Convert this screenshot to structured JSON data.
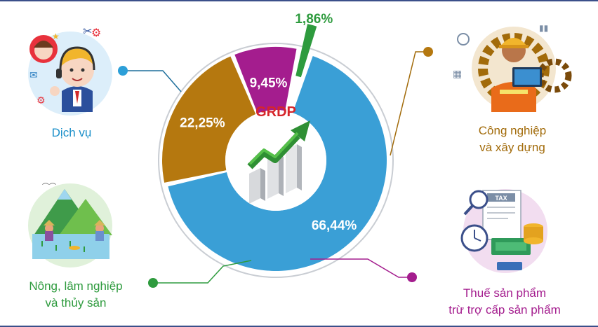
{
  "chart_data": {
    "type": "pie",
    "title": "GRDP",
    "slices": [
      {
        "label": "Dịch vụ",
        "value": 66.44,
        "value_text": "66,44%",
        "color": "#3a9fd6"
      },
      {
        "label": "Công nghiệp và xây dựng",
        "value": 22.25,
        "value_text": "22,25%",
        "color": "#b5780f"
      },
      {
        "label": "Thuế sản phẩm trừ trợ cấp sản phẩm",
        "value": 9.45,
        "value_text": "9,45%",
        "color": "#a41d8e"
      },
      {
        "label": "Nông, lâm nghiệp và thủy sản",
        "value": 1.86,
        "value_text": "1,86%",
        "color": "#2e9b3e"
      }
    ]
  },
  "categories": {
    "services": {
      "line1": "Dịch vụ",
      "color": "#1a8fc9"
    },
    "industry": {
      "line1": "Công nghiệp",
      "line2": "và xây dựng",
      "color": "#a26b0a"
    },
    "tax": {
      "line1": "Thuế sản phẩm",
      "line2": "trừ trợ cấp sản phẩm",
      "color": "#a41d8e"
    },
    "agriculture": {
      "line1": "Nông, lâm nghiệp",
      "line2": "và thủy sản",
      "color": "#2e9b3e"
    }
  },
  "icons": {
    "services": "customer-service-icon",
    "industry": "worker-gear-icon",
    "tax": "tax-document-money-icon",
    "agriculture": "farming-landscape-icon",
    "center": "growth-arrow-bar-icon"
  }
}
